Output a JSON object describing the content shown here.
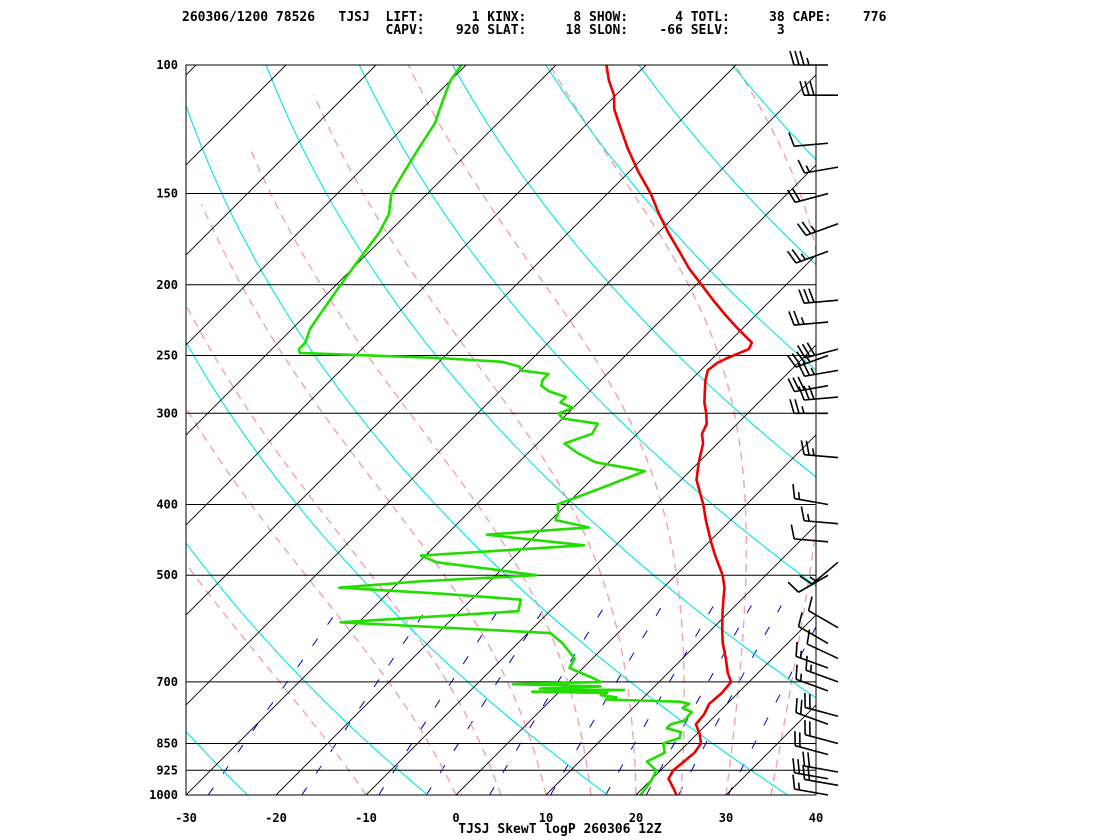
{
  "header": {
    "line1": "260306/1200 78526   TJSJ  LIFT:      1 KINX:      8 SHOW:      4 TOTL:     38 CAPE:    776",
    "line2": "                          CAPV:    920 SLAT:     18 SLON:    -66 SELV:      3"
  },
  "chart_data": {
    "type": "line",
    "title": "TJSJ SkewT logP 260306 12Z",
    "xlabel": "",
    "ylabel": "",
    "x_ticks": [
      -30,
      -20,
      -10,
      0,
      10,
      20,
      30,
      40
    ],
    "y_ticks": [
      100,
      150,
      200,
      250,
      300,
      400,
      500,
      700,
      850,
      925,
      1000
    ],
    "xlim": [
      -30,
      40
    ],
    "ylim": [
      1000,
      100
    ],
    "y_scale": "log",
    "skew": "45deg",
    "colors": {
      "isotherm": "#000000",
      "dry_adiabat": "#00e5e5",
      "moist_adiabat": "#f4a0b0",
      "mixing_ratio": "#0000cc",
      "temperature": "#ee0000",
      "dewpoint": "#22dd00",
      "isobar": "#000000"
    },
    "series": [
      {
        "pressure": [
          1000,
          975,
          950,
          925,
          900,
          875,
          850,
          825,
          800,
          775,
          750,
          725,
          700,
          680,
          650,
          620,
          600,
          580,
          560,
          540,
          520,
          500,
          470,
          450,
          420,
          400,
          370,
          350,
          330,
          320,
          310,
          300,
          290,
          280,
          270,
          262,
          256,
          252,
          248,
          245,
          240,
          230,
          220,
          210,
          200,
          190,
          180,
          170,
          160,
          150,
          140,
          130,
          120,
          115,
          110,
          105,
          100
        ],
        "values": [
          24.5,
          23.2,
          21.8,
          21.4,
          21.6,
          21.8,
          21.5,
          20.3,
          18.8,
          18.6,
          18.0,
          18.2,
          18.0,
          16.6,
          14.8,
          12.8,
          11.6,
          10.4,
          9.2,
          8.0,
          6.8,
          5.2,
          2.2,
          0.2,
          -2.8,
          -4.8,
          -8.3,
          -10.0,
          -11.6,
          -12.8,
          -13.4,
          -14.6,
          -16.0,
          -17.2,
          -18.4,
          -19.2,
          -19.0,
          -18.4,
          -17.6,
          -17.0,
          -17.4,
          -20.4,
          -23.4,
          -26.4,
          -29.4,
          -32.6,
          -35.6,
          -38.8,
          -42.0,
          -45.2,
          -49.0,
          -52.8,
          -56.6,
          -58.6,
          -60.2,
          -62.4,
          -64.4
        ]
      },
      {
        "pressure": [
          1000,
          975,
          950,
          925,
          900,
          875,
          850,
          835,
          820,
          810,
          800,
          790,
          780,
          770,
          760,
          750,
          745,
          740,
          735,
          730,
          725,
          722,
          718,
          715,
          710,
          705,
          700,
          690,
          670,
          650,
          620,
          600,
          580,
          560,
          540,
          530,
          520,
          510,
          500,
          490,
          480,
          470,
          455,
          440,
          430,
          420,
          410,
          400,
          380,
          360,
          350,
          340,
          330,
          320,
          310,
          305,
          300,
          295,
          290,
          285,
          280,
          275,
          270,
          265,
          262,
          259,
          255,
          252,
          248,
          245,
          240,
          230,
          220,
          210,
          200,
          190,
          180,
          170,
          160,
          155,
          150,
          140,
          130,
          120,
          115,
          110,
          105,
          100
        ],
        "values": [
          20.5,
          20.3,
          20.0,
          19.5,
          17.5,
          18.5,
          17.3,
          18.5,
          18.0,
          16.0,
          16.0,
          17.2,
          17.0,
          17.0,
          15.5,
          15.8,
          14.5,
          6.0,
          7.0,
          5.0,
          5.5,
          -3.0,
          7.0,
          -2.5,
          4.0,
          -6.0,
          3.5,
          2.0,
          -1.5,
          -2.0,
          -5.0,
          -7.5,
          -32.0,
          -13.5,
          -14.5,
          -24.0,
          -36.0,
          -28.0,
          -15.5,
          -21.5,
          -28.0,
          -30.5,
          -13.5,
          -25.5,
          -15.0,
          -19.5,
          -20.0,
          -21.0,
          -18.0,
          -15.0,
          -21.5,
          -24.5,
          -27.0,
          -25.0,
          -25.5,
          -30.0,
          -31.0,
          -30.0,
          -32.0,
          -32.0,
          -34.5,
          -36.0,
          -36.5,
          -36.5,
          -40.0,
          -40.5,
          -43.0,
          -50.5,
          -66.5,
          -67.0,
          -67.0,
          -68.0,
          -68.5,
          -69.0,
          -69.5,
          -70.0,
          -70.5,
          -71.0,
          -72.0,
          -73.0,
          -74.0,
          -75.0,
          -76.0,
          -77.0,
          -78.0,
          -79.0,
          -80.0,
          -80.5
        ]
      }
    ],
    "wind_barbs": [
      {
        "p": 100,
        "dir": 270,
        "spd": 35
      },
      {
        "p": 110,
        "dir": 270,
        "spd": 30
      },
      {
        "p": 128,
        "dir": 265,
        "spd": 10
      },
      {
        "p": 138,
        "dir": 260,
        "spd": 15
      },
      {
        "p": 150,
        "dir": 255,
        "spd": 20
      },
      {
        "p": 165,
        "dir": 250,
        "spd": 25
      },
      {
        "p": 180,
        "dir": 250,
        "spd": 25
      },
      {
        "p": 210,
        "dir": 265,
        "spd": 30
      },
      {
        "p": 225,
        "dir": 265,
        "spd": 25
      },
      {
        "p": 245,
        "dir": 255,
        "spd": 30
      },
      {
        "p": 250,
        "dir": 250,
        "spd": 35
      },
      {
        "p": 262,
        "dir": 260,
        "spd": 25
      },
      {
        "p": 275,
        "dir": 260,
        "spd": 30
      },
      {
        "p": 285,
        "dir": 265,
        "spd": 30
      },
      {
        "p": 300,
        "dir": 270,
        "spd": 25
      },
      {
        "p": 345,
        "dir": 275,
        "spd": 25
      },
      {
        "p": 400,
        "dir": 280,
        "spd": 15
      },
      {
        "p": 425,
        "dir": 275,
        "spd": 15
      },
      {
        "p": 450,
        "dir": 275,
        "spd": 10
      },
      {
        "p": 480,
        "dir": 230,
        "spd": 15
      },
      {
        "p": 500,
        "dir": 240,
        "spd": 10
      },
      {
        "p": 590,
        "dir": 300,
        "spd": 10
      },
      {
        "p": 620,
        "dir": 300,
        "spd": 10
      },
      {
        "p": 650,
        "dir": 295,
        "spd": 10
      },
      {
        "p": 670,
        "dir": 290,
        "spd": 15
      },
      {
        "p": 700,
        "dir": 290,
        "spd": 15
      },
      {
        "p": 720,
        "dir": 290,
        "spd": 15
      },
      {
        "p": 780,
        "dir": 285,
        "spd": 20
      },
      {
        "p": 800,
        "dir": 290,
        "spd": 20
      },
      {
        "p": 850,
        "dir": 285,
        "spd": 20
      },
      {
        "p": 880,
        "dir": 285,
        "spd": 20
      },
      {
        "p": 930,
        "dir": 280,
        "spd": 20
      },
      {
        "p": 950,
        "dir": 280,
        "spd": 20
      },
      {
        "p": 970,
        "dir": 280,
        "spd": 20
      },
      {
        "p": 1000,
        "dir": 280,
        "spd": 15
      }
    ]
  }
}
